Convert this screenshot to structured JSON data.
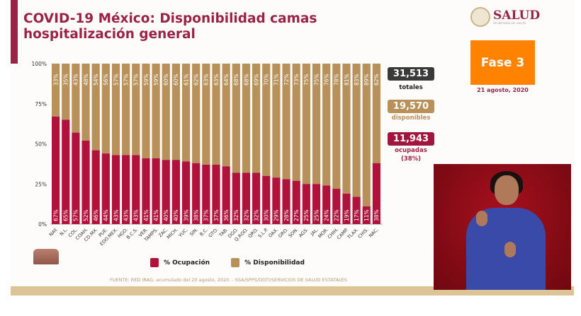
{
  "header": {
    "title": "COVID-19 México: Disponibilidad camas hospitalización general",
    "logo_text": "SALUD",
    "logo_subtext": "SECRETARÍA DE SALUD"
  },
  "phase": {
    "label": "Fase 3",
    "date": "21 agosto, 2020",
    "color": "#ff8200"
  },
  "stats": {
    "total": {
      "value": "31,513",
      "label": "totales"
    },
    "available": {
      "value": "19,570",
      "label": "disponibles"
    },
    "occupied": {
      "value": "11,943",
      "label": "ocupadas",
      "pct": "(38%)"
    }
  },
  "colors": {
    "occupation": "#b0123b",
    "availability": "#b8915a",
    "brand": "#9b2247"
  },
  "legend": {
    "occupation": "% Ocupación",
    "availability": "% Disponibilidad"
  },
  "source": "FUENTE: RED IRAG, acumulado del 20 agosto, 2020. - SSA/SPPS/DGTI/SERVICIOS DE SALUD ESTATALES",
  "chart_data": {
    "type": "bar",
    "stacked": true,
    "categories": [
      "NAY.",
      "N.L.",
      "COL.",
      "COAH.",
      "CD.MX.",
      "PUE.",
      "EDO.MEX.",
      "HGO.",
      "B.C.S.",
      "VER.",
      "TAMPS.",
      "ZAC.",
      "MICH.",
      "YUC.",
      "SIN.",
      "B.C.",
      "GTO.",
      "TAB.",
      "DGO.",
      "Q.ROO.",
      "QRO.",
      "S.L.P.",
      "OAX.",
      "GRO.",
      "SON.",
      "AGS.",
      "JAL.",
      "MOR.",
      "CHIH.",
      "CAMP.",
      "TLAX.",
      "CHIS.",
      "NAC."
    ],
    "series": [
      {
        "name": "% Ocupación",
        "values": [
          67,
          65,
          57,
          52,
          46,
          44,
          43,
          43,
          43,
          41,
          41,
          40,
          40,
          39,
          38,
          37,
          37,
          36,
          32,
          32,
          32,
          30,
          29,
          28,
          27,
          25,
          25,
          24,
          22,
          19,
          17,
          11,
          38
        ]
      },
      {
        "name": "% Disponibilidad",
        "values": [
          33,
          35,
          43,
          48,
          54,
          56,
          57,
          57,
          57,
          59,
          59,
          60,
          60,
          61,
          62,
          63,
          63,
          64,
          68,
          68,
          69,
          70,
          71,
          72,
          73,
          75,
          75,
          76,
          78,
          81,
          83,
          89,
          62
        ]
      }
    ],
    "yticks": [
      "0%",
      "25%",
      "50%",
      "75%",
      "100%"
    ],
    "ylim": [
      0,
      100
    ],
    "legend": "bottom"
  }
}
